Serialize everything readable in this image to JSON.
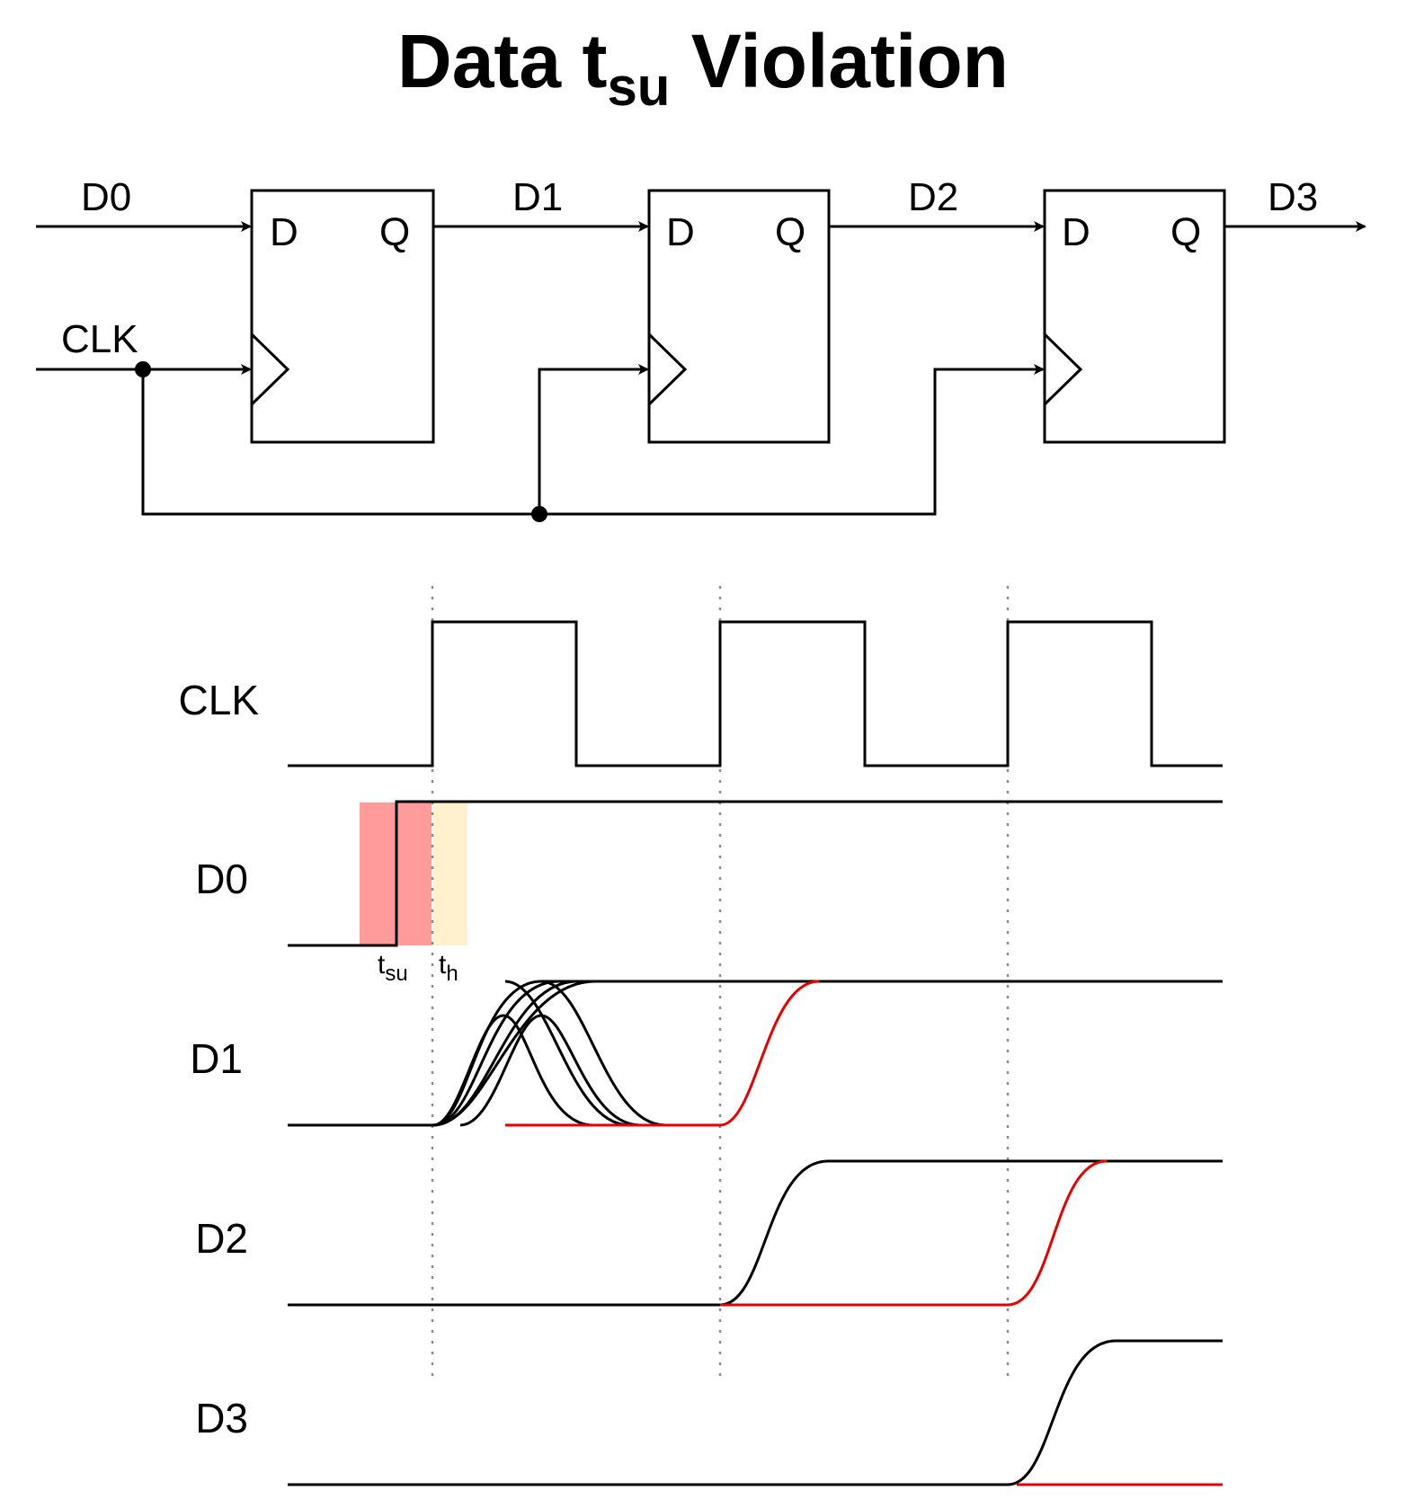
{
  "title": {
    "main": "Data t",
    "subscript": "su",
    "rest": " Violation"
  },
  "circuit": {
    "signals": [
      "D0",
      "D1",
      "D2",
      "D3"
    ],
    "clock_label": "CLK",
    "flipflops": [
      {
        "d_label": "D",
        "q_label": "Q"
      },
      {
        "d_label": "D",
        "q_label": "Q"
      },
      {
        "d_label": "D",
        "q_label": "Q"
      }
    ]
  },
  "timing": {
    "rows": [
      "CLK",
      "D0",
      "D1",
      "D2",
      "D3"
    ],
    "annotations": {
      "setup": {
        "base": "t",
        "sub": "su"
      },
      "hold": {
        "base": "t",
        "sub": "h"
      }
    },
    "colors": {
      "setup_window": "#ff9b9b",
      "hold_window": "#fff1cc",
      "metastable_trace": "#e60000"
    }
  }
}
